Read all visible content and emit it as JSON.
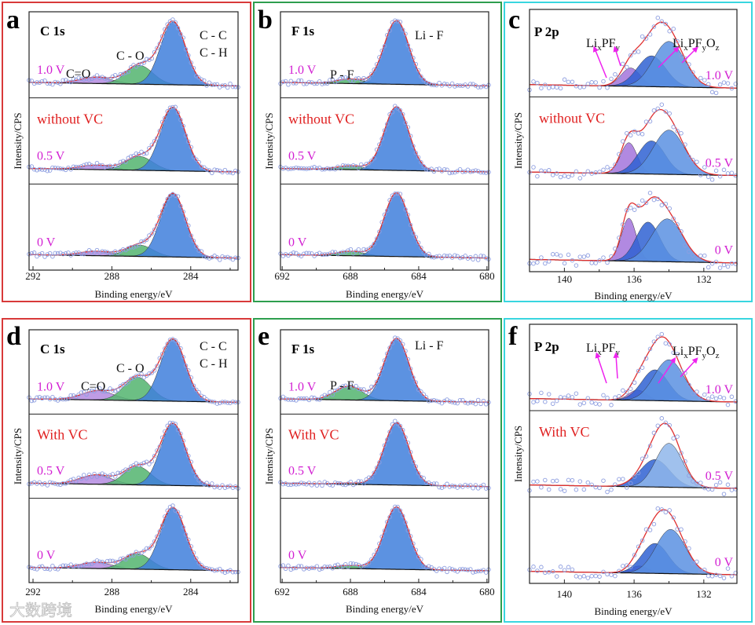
{
  "watermark": "大数跨境",
  "colors": {
    "envelope": "#e03030",
    "points": "#8e9ee0",
    "baseline": "#111111",
    "voltage": "#d21fd2",
    "condition": "#e02020",
    "arrow": "#ee22ee",
    "border_c1s": "#d83a3a",
    "border_f1s": "#2e9e4e",
    "border_p2p": "#39d6e0"
  },
  "chart_data": [
    {
      "type": "area",
      "letter": "a",
      "title": "C 1s",
      "condition": "without VC",
      "xlabel": "Binding energy/eV",
      "ylabel": "Intensity/CPS",
      "xlim": [
        292.2,
        281.6
      ],
      "ticks": [
        "292",
        "288",
        "284"
      ],
      "tick_values": [
        292,
        288,
        284
      ],
      "annotations": [
        {
          "parts": [
            {
              "t": "C=O"
            }
          ]
        },
        {
          "parts": [
            {
              "t": "C - O"
            }
          ]
        },
        {
          "parts": [
            {
              "t": "C - C"
            }
          ]
        },
        {
          "parts": [
            {
              "t": "C - H"
            }
          ]
        }
      ],
      "subplots": [
        {
          "voltage": "1.0 V",
          "peaks": [
            {
              "name": "C=O",
              "center": 288.8,
              "height": 0.1,
              "fwhm": 1.9,
              "color": "#b48be0"
            },
            {
              "name": "C-O",
              "center": 286.6,
              "height": 0.3,
              "fwhm": 1.6,
              "color": "#52b46e"
            },
            {
              "name": "C-C/C-H",
              "center": 284.9,
              "height": 1.0,
              "fwhm": 1.5,
              "color": "#3f7fdc"
            }
          ]
        },
        {
          "voltage": "0.5 V",
          "peaks": [
            {
              "name": "C=O",
              "center": 288.8,
              "height": 0.07,
              "fwhm": 1.9,
              "color": "#b48be0"
            },
            {
              "name": "C-O",
              "center": 286.6,
              "height": 0.22,
              "fwhm": 1.6,
              "color": "#52b46e"
            },
            {
              "name": "C-C/C-H",
              "center": 284.9,
              "height": 1.0,
              "fwhm": 1.5,
              "color": "#3f7fdc"
            }
          ]
        },
        {
          "voltage": "0 V",
          "peaks": [
            {
              "name": "C=O",
              "center": 288.8,
              "height": 0.07,
              "fwhm": 1.9,
              "color": "#b48be0"
            },
            {
              "name": "C-O",
              "center": 286.6,
              "height": 0.18,
              "fwhm": 1.6,
              "color": "#52b46e"
            },
            {
              "name": "C-C/C-H",
              "center": 284.9,
              "height": 1.0,
              "fwhm": 1.5,
              "color": "#3f7fdc"
            }
          ]
        }
      ]
    },
    {
      "type": "area",
      "letter": "b",
      "title": "F 1s",
      "condition": "without VC",
      "xlabel": "Binding energy/eV",
      "ylabel": "Intensity/CPS",
      "xlim": [
        692.1,
        679.9
      ],
      "ticks": [
        "692",
        "688",
        "684",
        "680"
      ],
      "tick_values": [
        692,
        688,
        684,
        680
      ],
      "annotations": [
        {
          "parts": [
            {
              "t": "P - F"
            }
          ]
        },
        {
          "parts": [
            {
              "t": "Li - F"
            }
          ]
        }
      ],
      "subplots": [
        {
          "voltage": "1.0 V",
          "peaks": [
            {
              "name": "P-F",
              "center": 688.0,
              "height": 0.07,
              "fwhm": 1.9,
              "color": "#52b46e"
            },
            {
              "name": "Li-F",
              "center": 685.3,
              "height": 1.0,
              "fwhm": 1.7,
              "color": "#3f7fdc"
            }
          ]
        },
        {
          "voltage": "0.5 V",
          "peaks": [
            {
              "name": "P-F",
              "center": 688.0,
              "height": 0.06,
              "fwhm": 1.9,
              "color": "#52b46e"
            },
            {
              "name": "Li-F",
              "center": 685.3,
              "height": 1.0,
              "fwhm": 1.7,
              "color": "#3f7fdc"
            }
          ]
        },
        {
          "voltage": "0 V",
          "peaks": [
            {
              "name": "P-F",
              "center": 688.0,
              "height": 0.07,
              "fwhm": 1.9,
              "color": "#52b46e"
            },
            {
              "name": "Li-F",
              "center": 685.3,
              "height": 1.0,
              "fwhm": 1.7,
              "color": "#3f7fdc"
            }
          ]
        }
      ]
    },
    {
      "type": "area",
      "letter": "c",
      "title": "P 2p",
      "condition": "without VC",
      "xlabel": "Binding energy/eV",
      "ylabel": "Intensity/CPS",
      "xlim": [
        142.0,
        130.1
      ],
      "ticks": [
        "140",
        "136",
        "132"
      ],
      "tick_values": [
        140,
        136,
        132
      ],
      "annotations": [
        {
          "parts": [
            {
              "t": "Li"
            },
            {
              "t": "x",
              "sub": true
            },
            {
              "t": "PF"
            },
            {
              "t": "y",
              "sub": true
            }
          ]
        },
        {
          "parts": [
            {
              "t": "Li"
            },
            {
              "t": "x",
              "sub": true
            },
            {
              "t": "PF"
            },
            {
              "t": "y",
              "sub": true
            },
            {
              "t": "O"
            },
            {
              "t": "z",
              "sub": true
            }
          ]
        }
      ],
      "subplots": [
        {
          "voltage": "1.0 V",
          "peaks": [
            {
              "name": "LixPFy",
              "center": 136.2,
              "height": 0.25,
              "fwhm": 1.3,
              "color": "#a374dc"
            },
            {
              "name": "LixPFyOz-1",
              "center": 135.0,
              "height": 0.42,
              "fwhm": 1.9,
              "color": "#2f62d2"
            },
            {
              "name": "LixPFyOz-2",
              "center": 134.0,
              "height": 0.62,
              "fwhm": 2.1,
              "color": "#5b91e2"
            }
          ]
        },
        {
          "voltage": "0.5 V",
          "peaks": [
            {
              "name": "LixPFy",
              "center": 136.3,
              "height": 0.42,
              "fwhm": 1.1,
              "color": "#a374dc"
            },
            {
              "name": "LixPFyOz-1",
              "center": 135.0,
              "height": 0.45,
              "fwhm": 1.8,
              "color": "#2f62d2"
            },
            {
              "name": "LixPFyOz-2",
              "center": 134.0,
              "height": 0.6,
              "fwhm": 2.1,
              "color": "#5b91e2"
            }
          ]
        },
        {
          "voltage": "0 V",
          "peaks": [
            {
              "name": "LixPFy",
              "center": 136.3,
              "height": 0.6,
              "fwhm": 1.0,
              "color": "#a374dc"
            },
            {
              "name": "LixPFyOz-1",
              "center": 135.2,
              "height": 0.55,
              "fwhm": 1.6,
              "color": "#2f62d2"
            },
            {
              "name": "LixPFyOz-2",
              "center": 134.1,
              "height": 0.6,
              "fwhm": 2.1,
              "color": "#5b91e2"
            }
          ]
        }
      ]
    },
    {
      "type": "area",
      "letter": "d",
      "title": "C 1s",
      "condition": "With VC",
      "xlabel": "Binding energy/eV",
      "ylabel": "Intensity/CPS",
      "xlim": [
        292.2,
        281.6
      ],
      "ticks": [
        "292",
        "288",
        "284"
      ],
      "tick_values": [
        292,
        288,
        284
      ],
      "annotations": [
        {
          "parts": [
            {
              "t": "C=O"
            }
          ]
        },
        {
          "parts": [
            {
              "t": "C - O"
            }
          ]
        },
        {
          "parts": [
            {
              "t": "C - C"
            }
          ]
        },
        {
          "parts": [
            {
              "t": "C - H"
            }
          ]
        }
      ],
      "subplots": [
        {
          "voltage": "1.0 V",
          "peaks": [
            {
              "name": "C=O",
              "center": 288.7,
              "height": 0.15,
              "fwhm": 1.9,
              "color": "#b48be0"
            },
            {
              "name": "C-O",
              "center": 286.7,
              "height": 0.38,
              "fwhm": 1.6,
              "color": "#52b46e"
            },
            {
              "name": "C-C/C-H",
              "center": 284.9,
              "height": 1.0,
              "fwhm": 1.5,
              "color": "#3f7fdc"
            }
          ]
        },
        {
          "voltage": "0.5 V",
          "peaks": [
            {
              "name": "C=O",
              "center": 288.8,
              "height": 0.15,
              "fwhm": 1.9,
              "color": "#b48be0"
            },
            {
              "name": "C-O",
              "center": 286.7,
              "height": 0.3,
              "fwhm": 1.6,
              "color": "#52b46e"
            },
            {
              "name": "C-C/C-H",
              "center": 284.9,
              "height": 1.0,
              "fwhm": 1.5,
              "color": "#3f7fdc"
            }
          ]
        },
        {
          "voltage": "0 V",
          "peaks": [
            {
              "name": "C=O",
              "center": 288.8,
              "height": 0.1,
              "fwhm": 1.9,
              "color": "#b48be0"
            },
            {
              "name": "C-O",
              "center": 286.7,
              "height": 0.25,
              "fwhm": 1.6,
              "color": "#52b46e"
            },
            {
              "name": "C-C/C-H",
              "center": 284.9,
              "height": 1.0,
              "fwhm": 1.5,
              "color": "#3f7fdc"
            }
          ]
        }
      ]
    },
    {
      "type": "area",
      "letter": "e",
      "title": "F 1s",
      "condition": "With VC",
      "xlabel": "Binding energy/eV",
      "ylabel": "Intensity/CPS",
      "xlim": [
        692.1,
        679.9
      ],
      "ticks": [
        "692",
        "688",
        "684",
        "680"
      ],
      "tick_values": [
        692,
        688,
        684,
        680
      ],
      "annotations": [
        {
          "parts": [
            {
              "t": "P - F"
            }
          ]
        },
        {
          "parts": [
            {
              "t": "Li - F"
            }
          ]
        }
      ],
      "subplots": [
        {
          "voltage": "1.0 V",
          "peaks": [
            {
              "name": "P-F",
              "center": 688.1,
              "height": 0.22,
              "fwhm": 1.9,
              "color": "#52b46e"
            },
            {
              "name": "Li-F",
              "center": 685.3,
              "height": 1.0,
              "fwhm": 1.7,
              "color": "#3f7fdc"
            }
          ]
        },
        {
          "voltage": "0.5 V",
          "peaks": [
            {
              "name": "P-F",
              "center": 688.0,
              "height": 0.02,
              "fwhm": 1.9,
              "color": "#52b46e"
            },
            {
              "name": "Li-F",
              "center": 685.3,
              "height": 1.0,
              "fwhm": 1.7,
              "color": "#3f7fdc"
            }
          ]
        },
        {
          "voltage": "0 V",
          "peaks": [
            {
              "name": "P-F",
              "center": 688.0,
              "height": 0.05,
              "fwhm": 1.9,
              "color": "#52b46e"
            },
            {
              "name": "Li-F",
              "center": 685.3,
              "height": 1.0,
              "fwhm": 1.7,
              "color": "#3f7fdc"
            }
          ]
        }
      ]
    },
    {
      "type": "area",
      "letter": "f",
      "title": "P 2p",
      "condition": "With VC",
      "xlabel": "Binding energy/eV",
      "ylabel": "Intensity/CPS",
      "xlim": [
        142.0,
        130.1
      ],
      "ticks": [
        "140",
        "136",
        "132"
      ],
      "tick_values": [
        140,
        136,
        132
      ],
      "annotations": [
        {
          "parts": [
            {
              "t": "Li"
            },
            {
              "t": "x",
              "sub": true
            },
            {
              "t": "PF"
            },
            {
              "t": "y",
              "sub": true
            }
          ]
        },
        {
          "parts": [
            {
              "t": "Li"
            },
            {
              "t": "x",
              "sub": true
            },
            {
              "t": "PF"
            },
            {
              "t": "y",
              "sub": true
            },
            {
              "t": "O"
            },
            {
              "t": "z",
              "sub": true
            }
          ]
        }
      ],
      "subplots": [
        {
          "voltage": "1.0 V",
          "peaks": [
            {
              "name": "LixPFy",
              "center": 135.8,
              "height": 0.15,
              "fwhm": 1.2,
              "color": "#a374dc"
            },
            {
              "name": "LixPFyOz-1",
              "center": 134.8,
              "height": 0.45,
              "fwhm": 1.8,
              "color": "#2f62d2"
            },
            {
              "name": "LixPFyOz-2",
              "center": 134.0,
              "height": 0.6,
              "fwhm": 2.0,
              "color": "#5b91e2"
            }
          ]
        },
        {
          "voltage": "0.5 V",
          "peaks": [
            {
              "name": "LixPFyOz-1",
              "center": 134.8,
              "height": 0.45,
              "fwhm": 2.0,
              "color": "#2f62d2"
            },
            {
              "name": "LixPFyOz-2",
              "center": 134.0,
              "height": 0.72,
              "fwhm": 1.8,
              "color": "#8fb6ea"
            }
          ]
        },
        {
          "voltage": "0 V",
          "peaks": [
            {
              "name": "LixPFy",
              "center": 135.7,
              "height": 0.1,
              "fwhm": 1.2,
              "color": "#a374dc"
            },
            {
              "name": "LixPFyOz-1",
              "center": 134.8,
              "height": 0.42,
              "fwhm": 1.8,
              "color": "#2f62d2"
            },
            {
              "name": "LixPFyOz-2",
              "center": 133.9,
              "height": 0.62,
              "fwhm": 2.0,
              "color": "#5b91e2"
            }
          ]
        }
      ]
    }
  ]
}
